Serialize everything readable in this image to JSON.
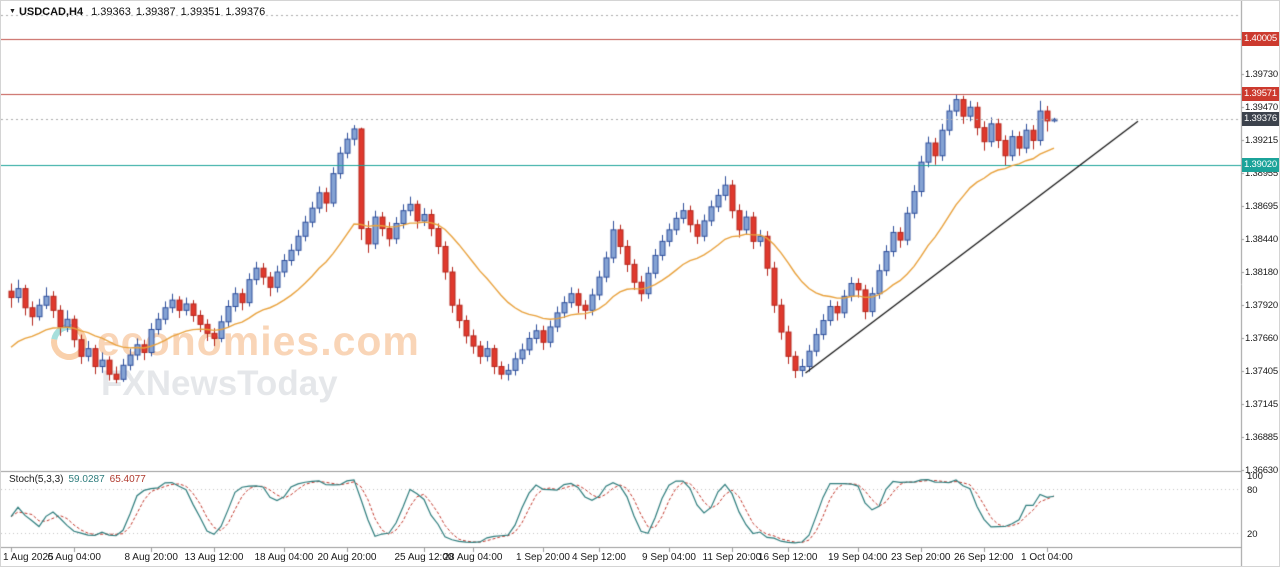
{
  "window": {
    "dropdown": "▼",
    "symbol": "USDCAD,H4",
    "open": "1.39363",
    "high": "1.39387",
    "low": "1.39351",
    "close": "1.39376"
  },
  "watermark": {
    "brand": "economies.com",
    "tagline": "FXNewsToday"
  },
  "colors": {
    "up_fill": "#85a3d4",
    "up_border": "#2f4f9b",
    "down_fill": "#e0392d",
    "down_border": "#b5271d",
    "ma": "#e8a13c",
    "trendline": "#111111",
    "stoch_k": "#2e7d7d",
    "stoch_d": "#c23a2e",
    "stoch_grid": "#c0c0c0",
    "separator": "#9a9a9a",
    "axis_text": "#1a1a1a"
  },
  "price_axis": {
    "ticks": [
      "1.39730",
      "1.39470",
      "1.39215",
      "1.38955",
      "1.38695",
      "1.38440",
      "1.38180",
      "1.37920",
      "1.37660",
      "1.37405",
      "1.37145",
      "1.36885",
      "1.36630"
    ],
    "badges": [
      {
        "label": "1.40005",
        "price": 1.40005,
        "color": "#cc3a2e"
      },
      {
        "label": "1.39571",
        "price": 1.39571,
        "color": "#cc3a2e"
      },
      {
        "label": "1.39376",
        "price": 1.39376,
        "color": "#3c424c"
      },
      {
        "label": "1.39020",
        "price": 1.3902,
        "color": "#1ba39a"
      }
    ]
  },
  "time_axis": {
    "labels": [
      {
        "text": "1 Aug 2025",
        "bar": 0
      },
      {
        "text": "6 Aug 04:00",
        "bar": 9
      },
      {
        "text": "8 Aug 20:00",
        "bar": 20
      },
      {
        "text": "13 Aug 12:00",
        "bar": 29
      },
      {
        "text": "18 Aug 04:00",
        "bar": 39
      },
      {
        "text": "20 Aug 20:00",
        "bar": 48
      },
      {
        "text": "25 Aug 12:00",
        "bar": 59
      },
      {
        "text": "28 Aug 04:00",
        "bar": 66
      },
      {
        "text": "1 Sep 20:00",
        "bar": 76
      },
      {
        "text": "4 Sep 12:00",
        "bar": 84
      },
      {
        "text": "9 Sep 04:00",
        "bar": 94
      },
      {
        "text": "11 Sep 20:00",
        "bar": 103
      },
      {
        "text": "16 Sep 12:00",
        "bar": 111
      },
      {
        "text": "19 Sep 04:00",
        "bar": 121
      },
      {
        "text": "23 Sep 20:00",
        "bar": 130
      },
      {
        "text": "26 Sep 12:00",
        "bar": 139
      },
      {
        "text": "1 Oct 04:00",
        "bar": 148
      }
    ]
  },
  "stoch": {
    "label": "Stoch(5,3,3)",
    "value_k": "59.0287",
    "value_d": "65.4077",
    "axis_labels": [
      "100",
      "80",
      "20"
    ]
  },
  "chart_data": {
    "type": "candlestick",
    "symbol": "USDCAD",
    "timeframe": "H4",
    "title": "USDCAD,H4",
    "y_range": [
      1.3663,
      1.40239
    ],
    "candles": [
      [
        1.3803,
        1.3809,
        1.379,
        1.3798
      ],
      [
        1.3798,
        1.3812,
        1.3794,
        1.3805
      ],
      [
        1.3805,
        1.3808,
        1.3784,
        1.379
      ],
      [
        1.379,
        1.3795,
        1.3776,
        1.3783
      ],
      [
        1.3783,
        1.3797,
        1.378,
        1.3792
      ],
      [
        1.3792,
        1.3806,
        1.3789,
        1.3799
      ],
      [
        1.3799,
        1.3803,
        1.3782,
        1.3788
      ],
      [
        1.3788,
        1.3792,
        1.3768,
        1.3775
      ],
      [
        1.3775,
        1.3788,
        1.3771,
        1.3781
      ],
      [
        1.3781,
        1.3784,
        1.3759,
        1.3765
      ],
      [
        1.3765,
        1.3769,
        1.3746,
        1.3752
      ],
      [
        1.3752,
        1.3764,
        1.3748,
        1.3758
      ],
      [
        1.3758,
        1.3761,
        1.3738,
        1.3744
      ],
      [
        1.3744,
        1.3755,
        1.3739,
        1.3749
      ],
      [
        1.3749,
        1.3752,
        1.3733,
        1.3738
      ],
      [
        1.3738,
        1.3744,
        1.3731,
        1.3734
      ],
      [
        1.3734,
        1.375,
        1.3732,
        1.3745
      ],
      [
        1.3745,
        1.3758,
        1.3741,
        1.3753
      ],
      [
        1.3753,
        1.3766,
        1.3749,
        1.3761
      ],
      [
        1.3761,
        1.3765,
        1.3749,
        1.3755
      ],
      [
        1.3755,
        1.3778,
        1.3752,
        1.3773
      ],
      [
        1.3773,
        1.3786,
        1.3769,
        1.3781
      ],
      [
        1.3781,
        1.3795,
        1.3777,
        1.379
      ],
      [
        1.379,
        1.3801,
        1.3786,
        1.3796
      ],
      [
        1.3796,
        1.3799,
        1.3782,
        1.3788
      ],
      [
        1.3788,
        1.3798,
        1.3784,
        1.3793
      ],
      [
        1.3793,
        1.3796,
        1.3779,
        1.3784
      ],
      [
        1.3784,
        1.3788,
        1.3771,
        1.3777
      ],
      [
        1.3777,
        1.3781,
        1.3764,
        1.377
      ],
      [
        1.377,
        1.3774,
        1.376,
        1.3766
      ],
      [
        1.3766,
        1.3784,
        1.3763,
        1.3779
      ],
      [
        1.3779,
        1.3796,
        1.3775,
        1.3791
      ],
      [
        1.3791,
        1.3806,
        1.3787,
        1.3801
      ],
      [
        1.3801,
        1.3805,
        1.3788,
        1.3794
      ],
      [
        1.3794,
        1.3817,
        1.3791,
        1.3812
      ],
      [
        1.3812,
        1.3826,
        1.3808,
        1.3821
      ],
      [
        1.3821,
        1.3825,
        1.3808,
        1.3814
      ],
      [
        1.3814,
        1.3818,
        1.3799,
        1.3806
      ],
      [
        1.3806,
        1.3823,
        1.3802,
        1.3818
      ],
      [
        1.3818,
        1.3832,
        1.3814,
        1.3827
      ],
      [
        1.3827,
        1.384,
        1.3823,
        1.3835
      ],
      [
        1.3835,
        1.3851,
        1.3831,
        1.3846
      ],
      [
        1.3846,
        1.3862,
        1.3842,
        1.3857
      ],
      [
        1.3857,
        1.3873,
        1.3853,
        1.3868
      ],
      [
        1.3868,
        1.3885,
        1.3864,
        1.388
      ],
      [
        1.388,
        1.3884,
        1.3865,
        1.3872
      ],
      [
        1.3872,
        1.39,
        1.3869,
        1.3895
      ],
      [
        1.3895,
        1.3916,
        1.3891,
        1.3911
      ],
      [
        1.3911,
        1.3927,
        1.3907,
        1.3922
      ],
      [
        1.3922,
        1.3933,
        1.3917,
        1.393
      ],
      [
        1.393,
        1.3931,
        1.3843,
        1.3852
      ],
      [
        1.3852,
        1.3858,
        1.3833,
        1.384
      ],
      [
        1.384,
        1.3866,
        1.3836,
        1.3861
      ],
      [
        1.3861,
        1.3865,
        1.3846,
        1.3852
      ],
      [
        1.3852,
        1.3857,
        1.3838,
        1.3844
      ],
      [
        1.3844,
        1.3861,
        1.384,
        1.3856
      ],
      [
        1.3856,
        1.3871,
        1.3852,
        1.3866
      ],
      [
        1.3866,
        1.3877,
        1.3862,
        1.3871
      ],
      [
        1.3871,
        1.3874,
        1.3852,
        1.3858
      ],
      [
        1.3858,
        1.3868,
        1.3854,
        1.3863
      ],
      [
        1.3863,
        1.3867,
        1.3846,
        1.3852
      ],
      [
        1.3852,
        1.3856,
        1.3832,
        1.3838
      ],
      [
        1.3838,
        1.3842,
        1.3812,
        1.3818
      ],
      [
        1.3818,
        1.3822,
        1.3786,
        1.3792
      ],
      [
        1.3792,
        1.3797,
        1.3774,
        1.378
      ],
      [
        1.378,
        1.3784,
        1.3762,
        1.3768
      ],
      [
        1.3768,
        1.3773,
        1.3754,
        1.376
      ],
      [
        1.376,
        1.3764,
        1.3746,
        1.3752
      ],
      [
        1.3752,
        1.3764,
        1.3748,
        1.3758
      ],
      [
        1.3758,
        1.3761,
        1.3738,
        1.3744
      ],
      [
        1.3744,
        1.3748,
        1.3734,
        1.3738
      ],
      [
        1.3738,
        1.3746,
        1.3733,
        1.3741
      ],
      [
        1.3741,
        1.3755,
        1.3737,
        1.375
      ],
      [
        1.375,
        1.3762,
        1.3746,
        1.3757
      ],
      [
        1.3757,
        1.3771,
        1.3753,
        1.3766
      ],
      [
        1.3766,
        1.3777,
        1.3762,
        1.3772
      ],
      [
        1.3772,
        1.3776,
        1.3757,
        1.3763
      ],
      [
        1.3763,
        1.378,
        1.3759,
        1.3775
      ],
      [
        1.3775,
        1.3791,
        1.3771,
        1.3786
      ],
      [
        1.3786,
        1.3799,
        1.3782,
        1.3794
      ],
      [
        1.3794,
        1.3806,
        1.379,
        1.3801
      ],
      [
        1.3801,
        1.3805,
        1.3786,
        1.3792
      ],
      [
        1.3792,
        1.3796,
        1.3781,
        1.3788
      ],
      [
        1.3788,
        1.3805,
        1.3784,
        1.38
      ],
      [
        1.38,
        1.3819,
        1.3796,
        1.3814
      ],
      [
        1.3814,
        1.3834,
        1.381,
        1.3829
      ],
      [
        1.3829,
        1.3858,
        1.3825,
        1.3851
      ],
      [
        1.3851,
        1.3855,
        1.3832,
        1.3838
      ],
      [
        1.3838,
        1.3843,
        1.3818,
        1.3824
      ],
      [
        1.3824,
        1.3828,
        1.3804,
        1.381
      ],
      [
        1.381,
        1.3815,
        1.3795,
        1.3801
      ],
      [
        1.3801,
        1.3822,
        1.3797,
        1.3817
      ],
      [
        1.3817,
        1.3836,
        1.3813,
        1.3831
      ],
      [
        1.3831,
        1.3847,
        1.3827,
        1.3842
      ],
      [
        1.3842,
        1.3856,
        1.3838,
        1.3851
      ],
      [
        1.3851,
        1.3865,
        1.3847,
        1.386
      ],
      [
        1.386,
        1.3872,
        1.3856,
        1.3866
      ],
      [
        1.3866,
        1.387,
        1.3849,
        1.3855
      ],
      [
        1.3855,
        1.3859,
        1.384,
        1.3846
      ],
      [
        1.3846,
        1.3863,
        1.3842,
        1.3858
      ],
      [
        1.3858,
        1.3874,
        1.3854,
        1.3869
      ],
      [
        1.3869,
        1.3883,
        1.3865,
        1.3878
      ],
      [
        1.3878,
        1.3893,
        1.3874,
        1.3886
      ],
      [
        1.3886,
        1.389,
        1.386,
        1.3866
      ],
      [
        1.3866,
        1.3871,
        1.3845,
        1.3851
      ],
      [
        1.3851,
        1.3866,
        1.3847,
        1.3861
      ],
      [
        1.3861,
        1.3865,
        1.3836,
        1.3842
      ],
      [
        1.3842,
        1.3851,
        1.3838,
        1.3846
      ],
      [
        1.3846,
        1.385,
        1.3815,
        1.3821
      ],
      [
        1.3821,
        1.3826,
        1.3786,
        1.3792
      ],
      [
        1.3792,
        1.3797,
        1.3765,
        1.3771
      ],
      [
        1.3771,
        1.3776,
        1.3746,
        1.3752
      ],
      [
        1.3752,
        1.3756,
        1.3735,
        1.3741
      ],
      [
        1.3741,
        1.375,
        1.3736,
        1.3744
      ],
      [
        1.3744,
        1.3761,
        1.374,
        1.3756
      ],
      [
        1.3756,
        1.3774,
        1.3752,
        1.3769
      ],
      [
        1.3769,
        1.3785,
        1.3765,
        1.378
      ],
      [
        1.378,
        1.3796,
        1.3776,
        1.3791
      ],
      [
        1.3791,
        1.3795,
        1.378,
        1.3786
      ],
      [
        1.3786,
        1.3804,
        1.3782,
        1.3799
      ],
      [
        1.3799,
        1.3814,
        1.3795,
        1.3809
      ],
      [
        1.3809,
        1.3813,
        1.3798,
        1.3804
      ],
      [
        1.3804,
        1.3808,
        1.3781,
        1.3787
      ],
      [
        1.3787,
        1.3806,
        1.3783,
        1.3801
      ],
      [
        1.3801,
        1.3824,
        1.3797,
        1.3819
      ],
      [
        1.3819,
        1.3839,
        1.3815,
        1.3834
      ],
      [
        1.3834,
        1.3854,
        1.383,
        1.3849
      ],
      [
        1.3849,
        1.3853,
        1.3837,
        1.3843
      ],
      [
        1.3843,
        1.3869,
        1.3839,
        1.3864
      ],
      [
        1.3864,
        1.3886,
        1.386,
        1.3881
      ],
      [
        1.3881,
        1.3909,
        1.3877,
        1.3904
      ],
      [
        1.3904,
        1.3924,
        1.39,
        1.3919
      ],
      [
        1.3919,
        1.3923,
        1.3902,
        1.3909
      ],
      [
        1.3909,
        1.3934,
        1.3905,
        1.3929
      ],
      [
        1.3929,
        1.3949,
        1.3925,
        1.3944
      ],
      [
        1.3944,
        1.3957,
        1.394,
        1.3953
      ],
      [
        1.3953,
        1.3956,
        1.3934,
        1.394
      ],
      [
        1.394,
        1.3952,
        1.3936,
        1.3947
      ],
      [
        1.3947,
        1.3951,
        1.3925,
        1.3931
      ],
      [
        1.3931,
        1.3936,
        1.3913,
        1.392
      ],
      [
        1.392,
        1.3939,
        1.3916,
        1.3934
      ],
      [
        1.3934,
        1.3938,
        1.3915,
        1.3921
      ],
      [
        1.3921,
        1.3925,
        1.3901,
        1.3909
      ],
      [
        1.3909,
        1.3929,
        1.3905,
        1.3924
      ],
      [
        1.3924,
        1.3928,
        1.3909,
        1.3915
      ],
      [
        1.3915,
        1.3934,
        1.3911,
        1.3929
      ],
      [
        1.3929,
        1.3933,
        1.3914,
        1.3921
      ],
      [
        1.3921,
        1.3952,
        1.3917,
        1.3944
      ],
      [
        1.3944,
        1.3948,
        1.3928,
        1.39363
      ],
      [
        1.39363,
        1.39387,
        1.39351,
        1.39376
      ]
    ],
    "ma": {
      "type": "ema",
      "period": 20,
      "seed": 1.3755
    },
    "hlines": [
      {
        "price": 1.4019,
        "color": "#aaaaaa",
        "style": "dotted"
      },
      {
        "price": 1.40005,
        "color": "#c0504a",
        "style": "solid"
      },
      {
        "price": 1.39571,
        "color": "#c0504a",
        "style": "solid"
      },
      {
        "price": 1.3902,
        "color": "#1ba39a",
        "style": "solid"
      },
      {
        "price": 1.39376,
        "color": "#aaaaaa",
        "style": "dotted"
      }
    ],
    "trendline": {
      "bar1": 113.5,
      "price1": 1.3739,
      "bar2": 161,
      "price2": 1.3936
    },
    "stoch": {
      "k_period": 5,
      "slowing": 3,
      "d_period": 3
    },
    "stoch_levels": [
      80,
      20
    ]
  }
}
